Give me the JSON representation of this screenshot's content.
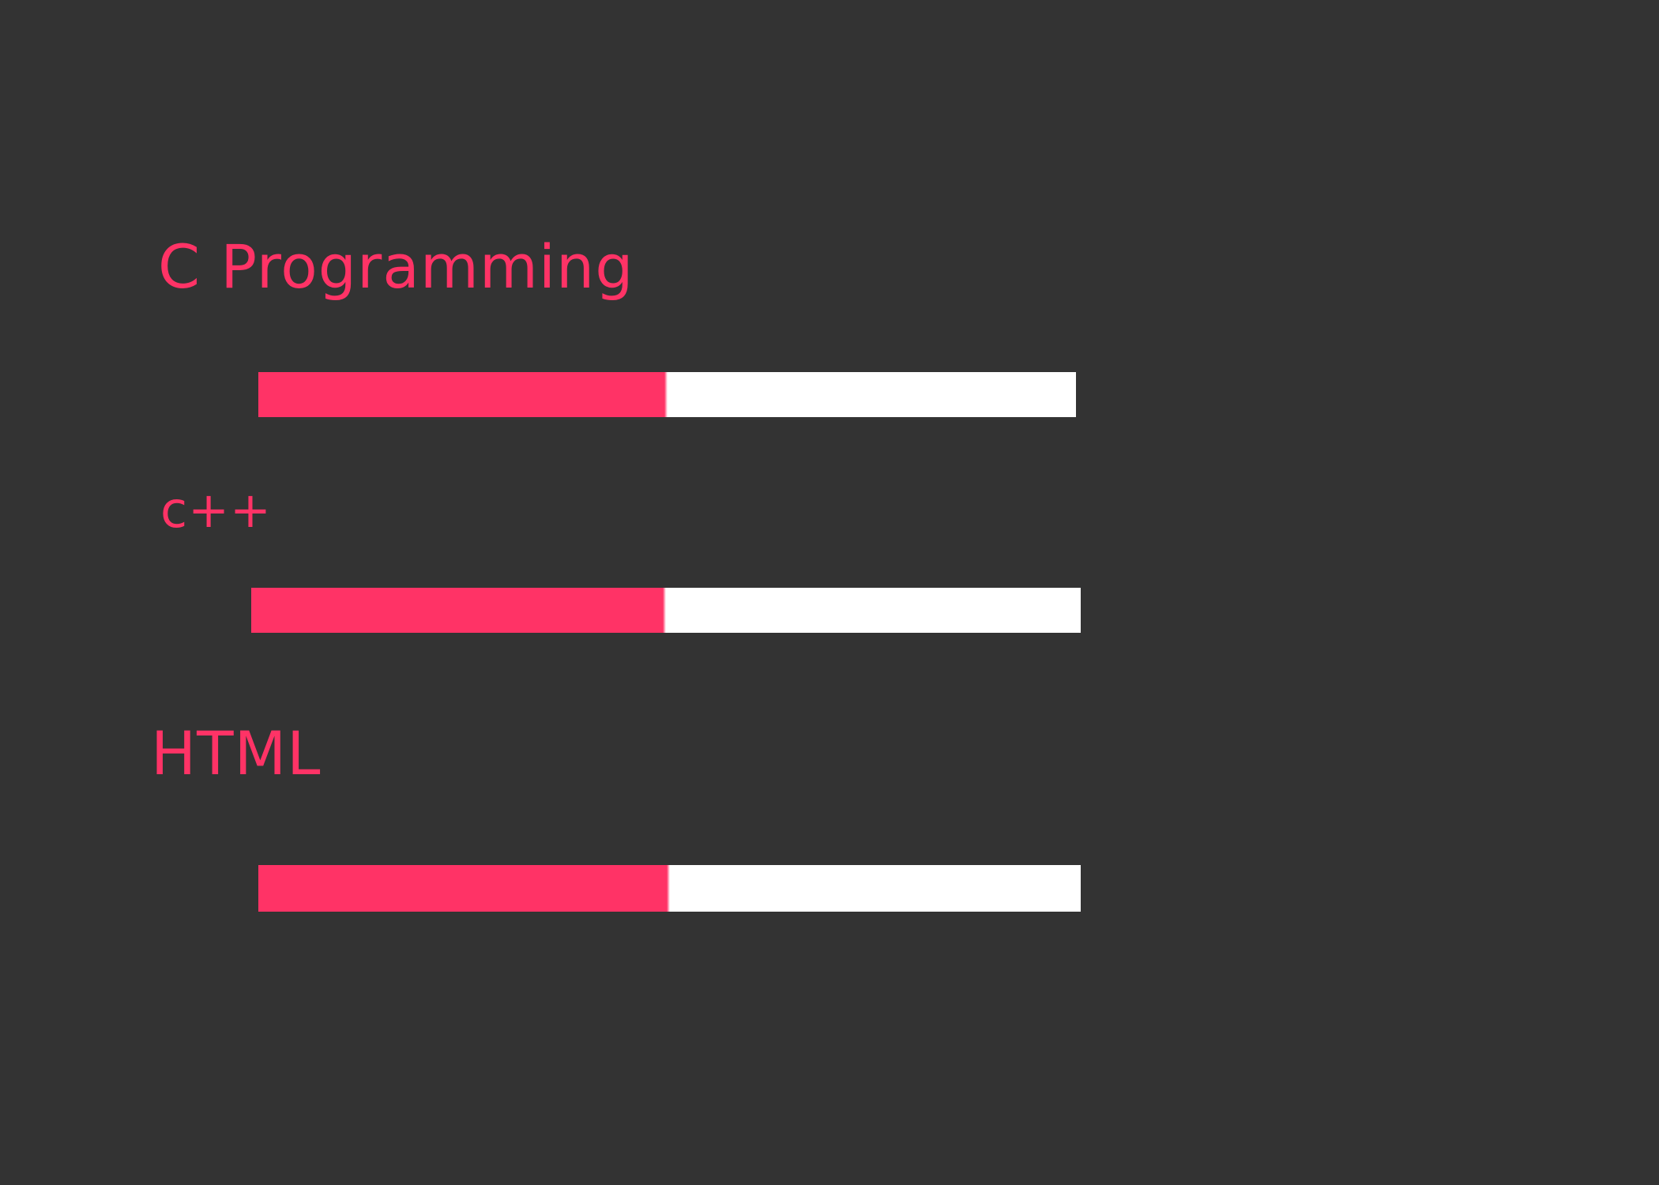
{
  "theme": {
    "background": "#333333",
    "accent": "#ff3366",
    "track": "#ffffff"
  },
  "skills": [
    {
      "label": "C Programming",
      "progress": 0.5
    },
    {
      "label": "c++",
      "progress": 0.5
    },
    {
      "label": "HTML",
      "progress": 0.5
    }
  ]
}
